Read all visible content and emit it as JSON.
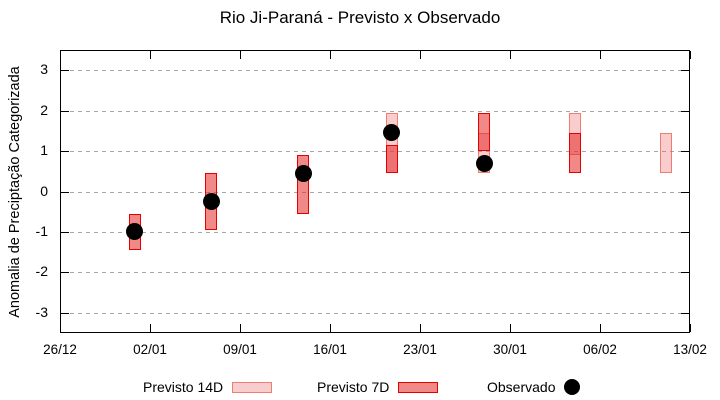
{
  "chart_data": {
    "type": "bar",
    "subtype": "interval-boxes-with-observed-points",
    "title": "Rio Ji-Paraná - Previsto x Observado",
    "ylabel": "Anomalia de Preciptação Categorizada",
    "xlabel": "",
    "ylim": [
      -3.5,
      3.5
    ],
    "yticks": [
      3,
      2,
      1,
      0,
      -1,
      -2,
      -3
    ],
    "ytick_labels": [
      "3",
      "2",
      "1",
      "0",
      "-1",
      "-2",
      "-3"
    ],
    "x_range_days": 49,
    "xtick_days": [
      0,
      7,
      14,
      21,
      28,
      35,
      42,
      49
    ],
    "xtick_labels": [
      "26/12",
      "02/01",
      "09/01",
      "16/01",
      "23/01",
      "30/01",
      "06/02",
      "13/02"
    ],
    "grid": "dashed-horizontal-only",
    "series": [
      {
        "name": "Previsto 14D",
        "kind": "box",
        "points": [
          {
            "day": 25.8,
            "hi": 1.95,
            "lo": 0.45
          },
          {
            "day": 33.0,
            "hi": 1.45,
            "lo": 0.45
          },
          {
            "day": 40.05,
            "hi": 1.95,
            "lo": 0.9
          },
          {
            "day": 47.15,
            "hi": 1.45,
            "lo": 0.45
          }
        ]
      },
      {
        "name": "Previsto 7D",
        "kind": "box",
        "points": [
          {
            "day": 5.8,
            "hi": -0.55,
            "lo": -1.45
          },
          {
            "day": 11.75,
            "hi": 0.45,
            "lo": -0.95
          },
          {
            "day": 18.9,
            "hi": 0.9,
            "lo": -0.55
          },
          {
            "day": 25.8,
            "hi": 1.15,
            "lo": 0.45
          },
          {
            "day": 33.0,
            "hi": 1.95,
            "lo": 1.0
          },
          {
            "day": 40.05,
            "hi": 1.45,
            "lo": 0.45
          }
        ]
      },
      {
        "name": "Observado",
        "kind": "point",
        "points": [
          {
            "day": 5.8,
            "y": -1.0
          },
          {
            "day": 11.75,
            "y": -0.25
          },
          {
            "day": 18.9,
            "y": 0.45
          },
          {
            "day": 25.8,
            "y": 1.45
          },
          {
            "day": 33.0,
            "y": 0.7
          }
        ]
      }
    ],
    "legend": {
      "position": "bottom-center-row",
      "items": [
        {
          "label": "Previsto 14D",
          "swatch": "box-14d"
        },
        {
          "label": "Previsto 7D",
          "swatch": "box-7d"
        },
        {
          "label": "Observado",
          "swatch": "dot"
        }
      ]
    },
    "colors": {
      "box14_fill": "rgba(235,100,100,0.32)",
      "box14_border": "rgba(238,110,95,0.85)",
      "box7_fill": "rgba(230,40,40,0.55)",
      "box7_border": "#e60000",
      "observed_dot": "#000000",
      "gridline": "#a6a6a6",
      "frame": "#000000"
    }
  }
}
